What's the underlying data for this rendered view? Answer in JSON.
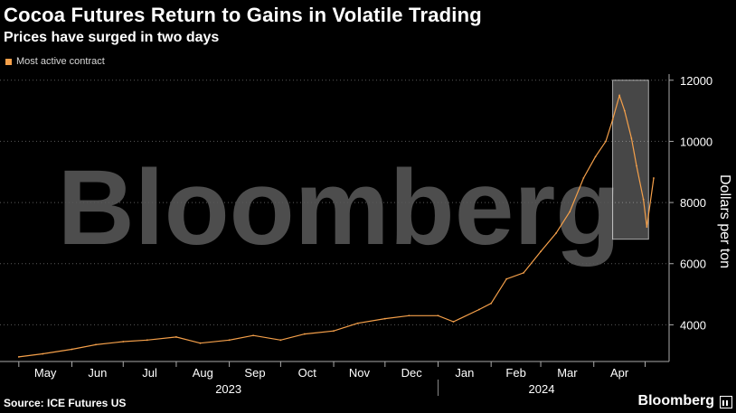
{
  "header": {
    "title": "Cocoa Futures Return to Gains in Volatile Trading",
    "subtitle": "Prices have surged in two days"
  },
  "legend": {
    "label": "Most active contract",
    "color": "#f5a04a"
  },
  "footer": {
    "source": "Source: ICE Futures US",
    "brand": "Bloomberg",
    "brand_icon": "bloomberg-terminal-icon"
  },
  "watermark": "Bloomberg",
  "colors": {
    "background": "#000000",
    "series": "#f5a04a",
    "grid": "#5a5a5a",
    "text": "#ffffff",
    "highlight": "#ffffff"
  },
  "chart_data": {
    "type": "line",
    "title": "Cocoa Futures Return to Gains in Volatile Trading",
    "subtitle": "Prices have surged in two days",
    "ylabel": "Dollars per ton",
    "xlabel": "",
    "ylim": [
      2800,
      12200
    ],
    "y_ticks": [
      4000,
      6000,
      8000,
      10000,
      12000
    ],
    "y_tick_labels": [
      "4000",
      "6000",
      "8000",
      "10000",
      "12000"
    ],
    "grid": "horizontal dotted",
    "legend_position": "top-left",
    "x_month_labels": [
      "May",
      "Jun",
      "Jul",
      "Aug",
      "Sep",
      "Oct",
      "Nov",
      "Dec",
      "Jan",
      "Feb",
      "Mar",
      "Apr"
    ],
    "x_year_labels": [
      "2023",
      "2024"
    ],
    "highlight": {
      "x_start": "2024-04-12",
      "x_end": "2024-05-03",
      "y_range": [
        6800,
        12000
      ]
    },
    "series": [
      {
        "name": "Most active contract",
        "x": [
          "2023-05-01",
          "2023-05-15",
          "2023-06-01",
          "2023-06-15",
          "2023-07-01",
          "2023-07-15",
          "2023-08-01",
          "2023-08-15",
          "2023-09-01",
          "2023-09-15",
          "2023-10-01",
          "2023-10-15",
          "2023-11-01",
          "2023-11-15",
          "2023-12-01",
          "2023-12-15",
          "2024-01-01",
          "2024-01-10",
          "2024-01-25",
          "2024-02-01",
          "2024-02-10",
          "2024-02-20",
          "2024-03-01",
          "2024-03-10",
          "2024-03-18",
          "2024-03-26",
          "2024-04-02",
          "2024-04-08",
          "2024-04-12",
          "2024-04-16",
          "2024-04-19",
          "2024-04-23",
          "2024-04-26",
          "2024-04-30",
          "2024-05-02",
          "2024-05-06"
        ],
        "values": [
          2950,
          3050,
          3200,
          3350,
          3450,
          3500,
          3600,
          3400,
          3500,
          3650,
          3500,
          3700,
          3800,
          4050,
          4200,
          4300,
          4300,
          4100,
          4500,
          4700,
          5500,
          5700,
          6400,
          7000,
          7700,
          8800,
          9500,
          10000,
          10700,
          11500,
          11000,
          10100,
          9200,
          8100,
          7200,
          8800
        ]
      }
    ]
  }
}
